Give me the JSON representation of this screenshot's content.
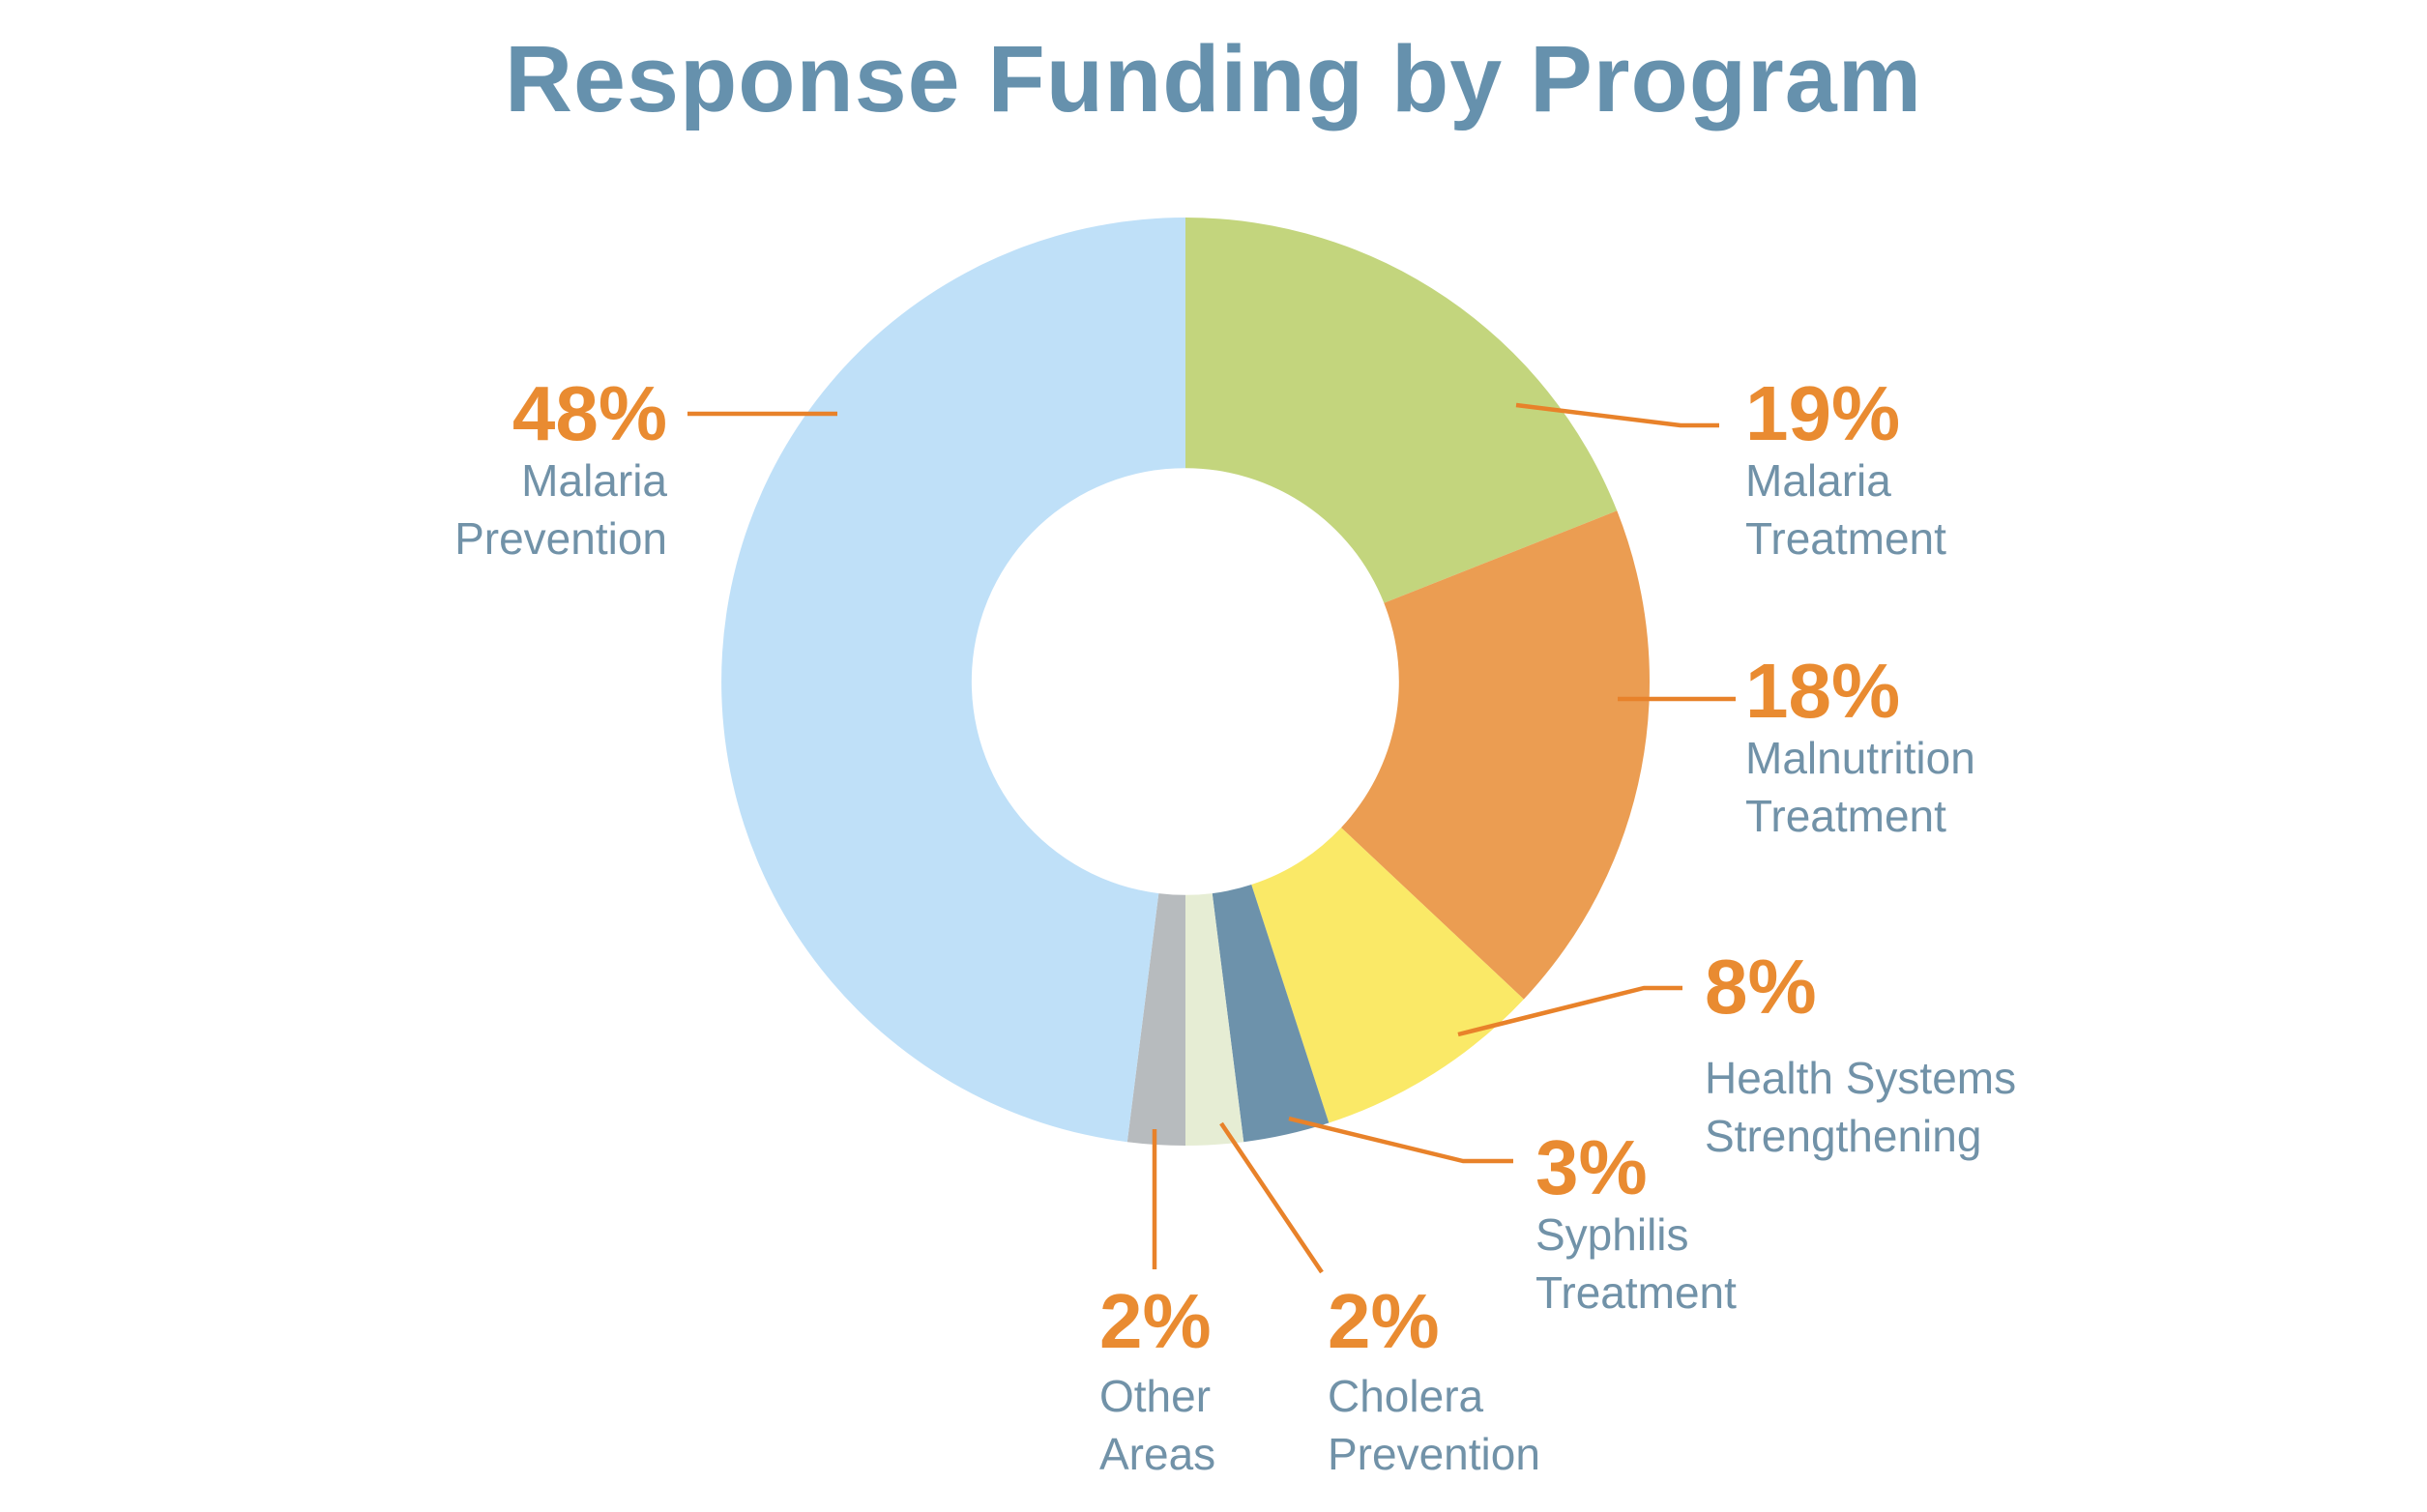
{
  "page": {
    "background": "#ffffff"
  },
  "chart_data": {
    "type": "pie",
    "subtype": "donut",
    "title": "Response Funding by Program",
    "direction": "clockwise",
    "start_angle_deg": 0,
    "inner_radius_ratio": 0.46,
    "legend_position": "callout-labels",
    "grid": false,
    "segments": [
      {
        "id": "malaria-treatment",
        "label": "Malaria Treatment",
        "value": 19,
        "pct_label": "19%",
        "name_lines": [
          "Malaria",
          "Treatment"
        ],
        "color": "#c3d57d"
      },
      {
        "id": "malnutrition-treatment",
        "label": "Malnutrition Treatment",
        "value": 18,
        "pct_label": "18%",
        "name_lines": [
          "Malnutrition",
          "Treatment"
        ],
        "color": "#eb9d52"
      },
      {
        "id": "health-systems-strengthening",
        "label": "Health Systems Strengthening",
        "value": 8,
        "pct_label": "8%",
        "name_lines": [
          "Health Systems",
          "Strengthening"
        ],
        "color": "#fae967"
      },
      {
        "id": "syphilis-treatment",
        "label": "Syphilis Treatment",
        "value": 3,
        "pct_label": "3%",
        "name_lines": [
          "Syphilis",
          "Treatment"
        ],
        "color": "#6d92ab"
      },
      {
        "id": "cholera-prevention",
        "label": "Cholera Prevention",
        "value": 2,
        "pct_label": "2%",
        "name_lines": [
          "Cholera",
          "Prevention"
        ],
        "color": "#e6edd4"
      },
      {
        "id": "other-areas",
        "label": "Other Areas",
        "value": 2,
        "pct_label": "2%",
        "name_lines": [
          "Other",
          "Areas"
        ],
        "color": "#b7bbbe"
      },
      {
        "id": "malaria-prevention",
        "label": "Malaria Prevention",
        "value": 48,
        "pct_label": "48%",
        "name_lines": [
          "Malaria",
          "Prevention"
        ],
        "color": "#bfe0f8"
      }
    ]
  },
  "colors": {
    "background": "#ffffff",
    "title_text": "#6691ad",
    "category_text": "#7192a8",
    "percent_text": "#e98b31",
    "leader_line": "#e8822a"
  }
}
